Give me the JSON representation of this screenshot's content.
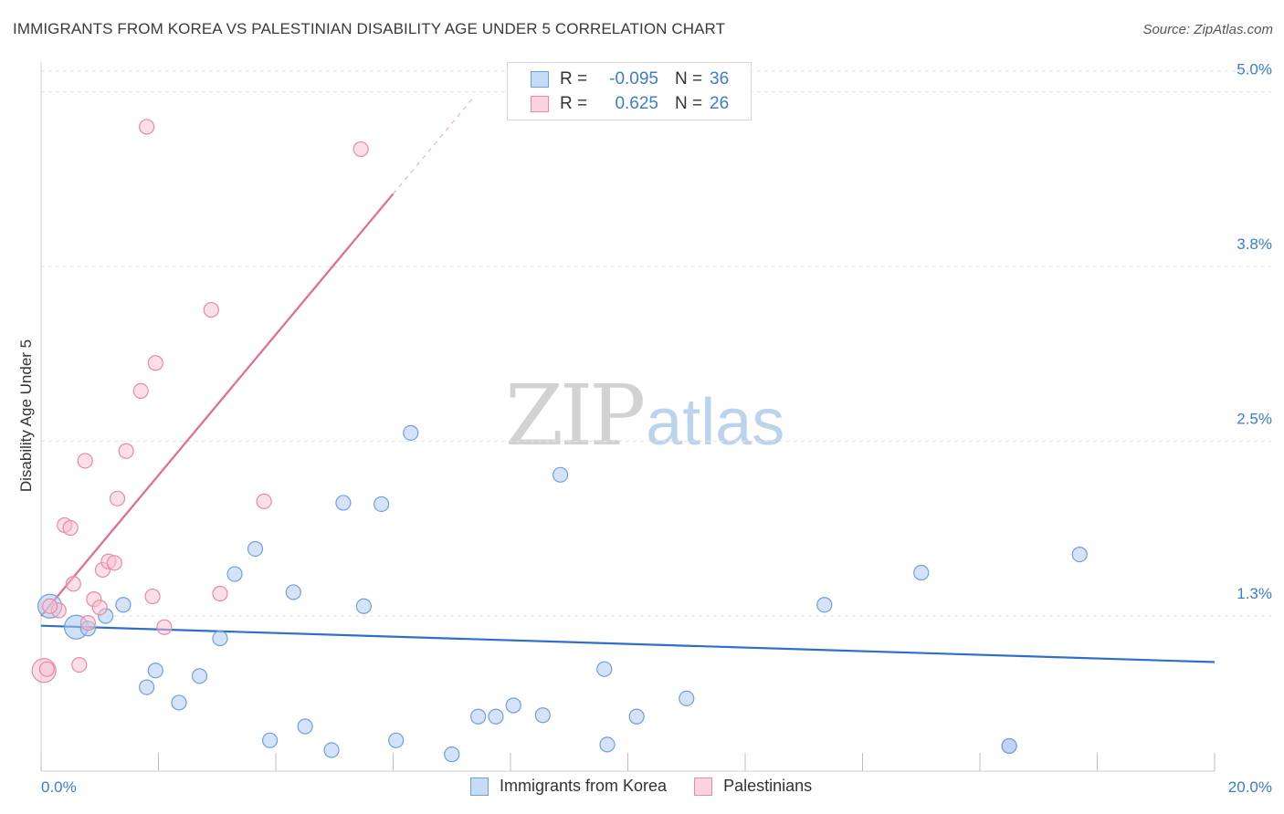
{
  "chart_data": {
    "type": "scatter",
    "title": "IMMIGRANTS FROM KOREA VS PALESTINIAN DISABILITY AGE UNDER 5 CORRELATION CHART",
    "source": "Source: ZipAtlas.com",
    "xlabel": "",
    "ylabel": "Disability Age Under 5",
    "xlim": [
      0,
      20
    ],
    "ylim": [
      0.14,
      5.2
    ],
    "x_tick_labels": [
      "0.0%",
      "20.0%"
    ],
    "y_ticks": [
      {
        "value": 5.0,
        "label": "5.0%"
      },
      {
        "value": 3.75,
        "label": "3.8%"
      },
      {
        "value": 2.5,
        "label": "2.5%"
      },
      {
        "value": 1.25,
        "label": "1.3%"
      }
    ],
    "watermark": {
      "zip": "ZIP",
      "atlas": "atlas"
    },
    "series": [
      {
        "name": "Immigrants from Korea",
        "color": "#a9c8f0",
        "stroke": "#6f9fdc",
        "line_color": "#2f6fc9",
        "legend_r_label": "R =",
        "r": "-0.095",
        "legend_n_label": "N =",
        "n": "36",
        "trend": {
          "x1": 0.0,
          "y1": 1.18,
          "x2": 20.0,
          "y2": 0.92
        },
        "points": [
          {
            "x": 0.15,
            "y": 1.32,
            "big": true
          },
          {
            "x": 0.6,
            "y": 1.17,
            "big": true
          },
          {
            "x": 0.8,
            "y": 1.16
          },
          {
            "x": 1.1,
            "y": 1.25
          },
          {
            "x": 1.4,
            "y": 1.33
          },
          {
            "x": 1.8,
            "y": 0.74
          },
          {
            "x": 1.95,
            "y": 0.86
          },
          {
            "x": 2.35,
            "y": 0.63
          },
          {
            "x": 2.7,
            "y": 0.82
          },
          {
            "x": 3.05,
            "y": 1.09
          },
          {
            "x": 3.3,
            "y": 1.55
          },
          {
            "x": 3.65,
            "y": 1.73
          },
          {
            "x": 3.9,
            "y": 0.36
          },
          {
            "x": 4.3,
            "y": 1.42
          },
          {
            "x": 4.5,
            "y": 0.46
          },
          {
            "x": 4.95,
            "y": 0.29
          },
          {
            "x": 5.15,
            "y": 2.06
          },
          {
            "x": 5.5,
            "y": 1.32
          },
          {
            "x": 5.8,
            "y": 2.05
          },
          {
            "x": 6.05,
            "y": 0.36
          },
          {
            "x": 6.3,
            "y": 2.56
          },
          {
            "x": 7.0,
            "y": 0.26
          },
          {
            "x": 7.45,
            "y": 0.53
          },
          {
            "x": 7.75,
            "y": 0.53
          },
          {
            "x": 8.05,
            "y": 0.61
          },
          {
            "x": 8.55,
            "y": 0.54
          },
          {
            "x": 8.85,
            "y": 2.26
          },
          {
            "x": 9.6,
            "y": 0.87
          },
          {
            "x": 9.65,
            "y": 0.33
          },
          {
            "x": 10.15,
            "y": 0.53
          },
          {
            "x": 11.0,
            "y": 0.66
          },
          {
            "x": 13.35,
            "y": 1.33
          },
          {
            "x": 15.0,
            "y": 1.56
          },
          {
            "x": 16.5,
            "y": 0.32
          },
          {
            "x": 16.5,
            "y": 0.32
          },
          {
            "x": 17.7,
            "y": 1.69
          }
        ]
      },
      {
        "name": "Palestinians",
        "color": "#f6c0d0",
        "stroke": "#e88aa8",
        "line_color": "#e46a92",
        "legend_r_label": "R =",
        "r": "0.625",
        "legend_n_label": "N =",
        "n": "26",
        "trend": {
          "x1": 0.0,
          "y1": 1.25,
          "x2": 6.0,
          "y2": 4.27
        },
        "trend_dashed": {
          "x1": 6.0,
          "y1": 4.27,
          "x2": 7.35,
          "y2": 4.95
        },
        "points": [
          {
            "x": 0.05,
            "y": 0.86,
            "big": true
          },
          {
            "x": 0.3,
            "y": 1.29
          },
          {
            "x": 0.4,
            "y": 1.9
          },
          {
            "x": 0.5,
            "y": 1.88
          },
          {
            "x": 0.55,
            "y": 1.48
          },
          {
            "x": 0.65,
            "y": 0.9
          },
          {
            "x": 0.75,
            "y": 2.36
          },
          {
            "x": 0.8,
            "y": 1.2
          },
          {
            "x": 0.9,
            "y": 1.37
          },
          {
            "x": 1.0,
            "y": 1.31
          },
          {
            "x": 1.05,
            "y": 1.58
          },
          {
            "x": 1.15,
            "y": 1.64
          },
          {
            "x": 1.25,
            "y": 1.63
          },
          {
            "x": 1.3,
            "y": 2.09
          },
          {
            "x": 1.45,
            "y": 2.43
          },
          {
            "x": 1.7,
            "y": 2.86
          },
          {
            "x": 1.8,
            "y": 4.75
          },
          {
            "x": 1.9,
            "y": 1.39
          },
          {
            "x": 1.95,
            "y": 3.06
          },
          {
            "x": 2.1,
            "y": 1.17
          },
          {
            "x": 2.9,
            "y": 3.44
          },
          {
            "x": 3.05,
            "y": 1.41
          },
          {
            "x": 3.8,
            "y": 2.07
          },
          {
            "x": 5.45,
            "y": 4.59
          },
          {
            "x": 0.1,
            "y": 0.87
          },
          {
            "x": 0.15,
            "y": 1.32
          }
        ]
      }
    ]
  }
}
